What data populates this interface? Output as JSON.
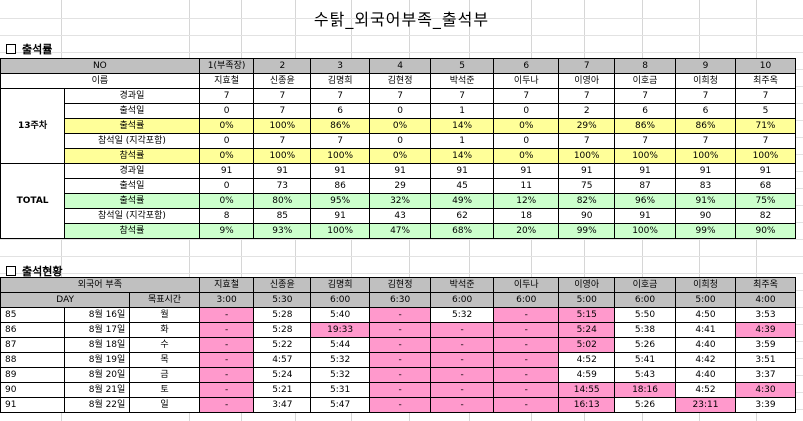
{
  "title": "수탉_외국어부족_출석부",
  "section1": "출석률",
  "section2": "출석현황",
  "t1": {
    "header_label": "NO",
    "numbers": [
      "1(부족장)",
      "2",
      "3",
      "4",
      "5",
      "6",
      "7",
      "8",
      "9",
      "10"
    ],
    "name_label": "이름",
    "names": [
      "지효철",
      "신종윤",
      "김명희",
      "김현정",
      "박석준",
      "이두나",
      "이영아",
      "이호금",
      "이희청",
      "최주옥"
    ],
    "groups": [
      {
        "label": "13주차",
        "rows": [
          {
            "label": "경과일",
            "values": [
              "7",
              "7",
              "7",
              "7",
              "7",
              "7",
              "7",
              "7",
              "7",
              "7"
            ],
            "style": ""
          },
          {
            "label": "출석일",
            "values": [
              "0",
              "7",
              "6",
              "0",
              "1",
              "0",
              "2",
              "6",
              "6",
              "5"
            ],
            "style": ""
          },
          {
            "label": "출석률",
            "values": [
              "0%",
              "100%",
              "86%",
              "0%",
              "14%",
              "0%",
              "29%",
              "86%",
              "86%",
              "71%"
            ],
            "style": "yellow"
          },
          {
            "label": "참석일 (지각포함)",
            "values": [
              "0",
              "7",
              "7",
              "0",
              "1",
              "0",
              "7",
              "7",
              "7",
              "7"
            ],
            "style": ""
          },
          {
            "label": "참석률",
            "values": [
              "0%",
              "100%",
              "100%",
              "0%",
              "14%",
              "0%",
              "100%",
              "100%",
              "100%",
              "100%"
            ],
            "style": "yellow"
          }
        ]
      },
      {
        "label": "TOTAL",
        "rows": [
          {
            "label": "경과일",
            "values": [
              "91",
              "91",
              "91",
              "91",
              "91",
              "91",
              "91",
              "91",
              "91",
              "91"
            ],
            "style": ""
          },
          {
            "label": "출석일",
            "values": [
              "0",
              "73",
              "86",
              "29",
              "45",
              "11",
              "75",
              "87",
              "83",
              "68"
            ],
            "style": ""
          },
          {
            "label": "출석률",
            "values": [
              "0%",
              "80%",
              "95%",
              "32%",
              "49%",
              "12%",
              "82%",
              "96%",
              "91%",
              "75%"
            ],
            "style": "green"
          },
          {
            "label": "참석일 (지각포함)",
            "values": [
              "8",
              "85",
              "91",
              "43",
              "62",
              "18",
              "90",
              "91",
              "90",
              "82"
            ],
            "style": ""
          },
          {
            "label": "참석률",
            "values": [
              "9%",
              "93%",
              "100%",
              "47%",
              "68%",
              "20%",
              "99%",
              "100%",
              "99%",
              "90%"
            ],
            "style": "green"
          }
        ]
      }
    ]
  },
  "t2": {
    "group_label": "외국어 부족",
    "names": [
      "지효철",
      "신종윤",
      "김명희",
      "김현정",
      "박석준",
      "이두나",
      "이영아",
      "이호금",
      "이희청",
      "최주옥"
    ],
    "day_label": "DAY",
    "target_label": "목표시간",
    "targets": [
      "3:00",
      "5:30",
      "6:00",
      "6:30",
      "6:00",
      "6:00",
      "5:00",
      "6:00",
      "5:00",
      "4:00"
    ],
    "rows": [
      {
        "no": "85",
        "date": "8월 16일",
        "dow": "월",
        "cells": [
          "-",
          "5:28",
          "5:40",
          "-",
          "5:32",
          "-",
          "5:15",
          "5:50",
          "4:50",
          "3:53"
        ],
        "pink": [
          0,
          3,
          5,
          6
        ]
      },
      {
        "no": "86",
        "date": "8월 17일",
        "dow": "화",
        "cells": [
          "-",
          "5:28",
          "19:33",
          "-",
          "-",
          "-",
          "5:24",
          "5:38",
          "4:41",
          "4:39"
        ],
        "pink": [
          0,
          2,
          3,
          4,
          5,
          6,
          9
        ]
      },
      {
        "no": "87",
        "date": "8월 18일",
        "dow": "수",
        "cells": [
          "-",
          "5:22",
          "5:44",
          "-",
          "-",
          "-",
          "5:02",
          "5:26",
          "4:40",
          "3:59"
        ],
        "pink": [
          0,
          3,
          4,
          5,
          6
        ]
      },
      {
        "no": "88",
        "date": "8월 19일",
        "dow": "목",
        "cells": [
          "-",
          "4:57",
          "5:32",
          "-",
          "-",
          "-",
          "4:52",
          "5:41",
          "4:42",
          "3:51"
        ],
        "pink": [
          0,
          3,
          4,
          5
        ]
      },
      {
        "no": "89",
        "date": "8월 20일",
        "dow": "금",
        "cells": [
          "-",
          "5:24",
          "5:32",
          "-",
          "-",
          "-",
          "4:59",
          "5:43",
          "4:40",
          "3:37"
        ],
        "pink": [
          0,
          3,
          4,
          5
        ]
      },
      {
        "no": "90",
        "date": "8월 21일",
        "dow": "토",
        "cells": [
          "-",
          "5:21",
          "5:31",
          "-",
          "-",
          "-",
          "14:55",
          "18:16",
          "4:52",
          "4:30"
        ],
        "pink": [
          0,
          3,
          4,
          5,
          6,
          7,
          9
        ]
      },
      {
        "no": "91",
        "date": "8월 22일",
        "dow": "일",
        "cells": [
          "-",
          "3:47",
          "5:47",
          "-",
          "-",
          "-",
          "16:13",
          "5:26",
          "23:11",
          "3:39"
        ],
        "pink": [
          0,
          3,
          4,
          5,
          6,
          8
        ]
      }
    ]
  }
}
